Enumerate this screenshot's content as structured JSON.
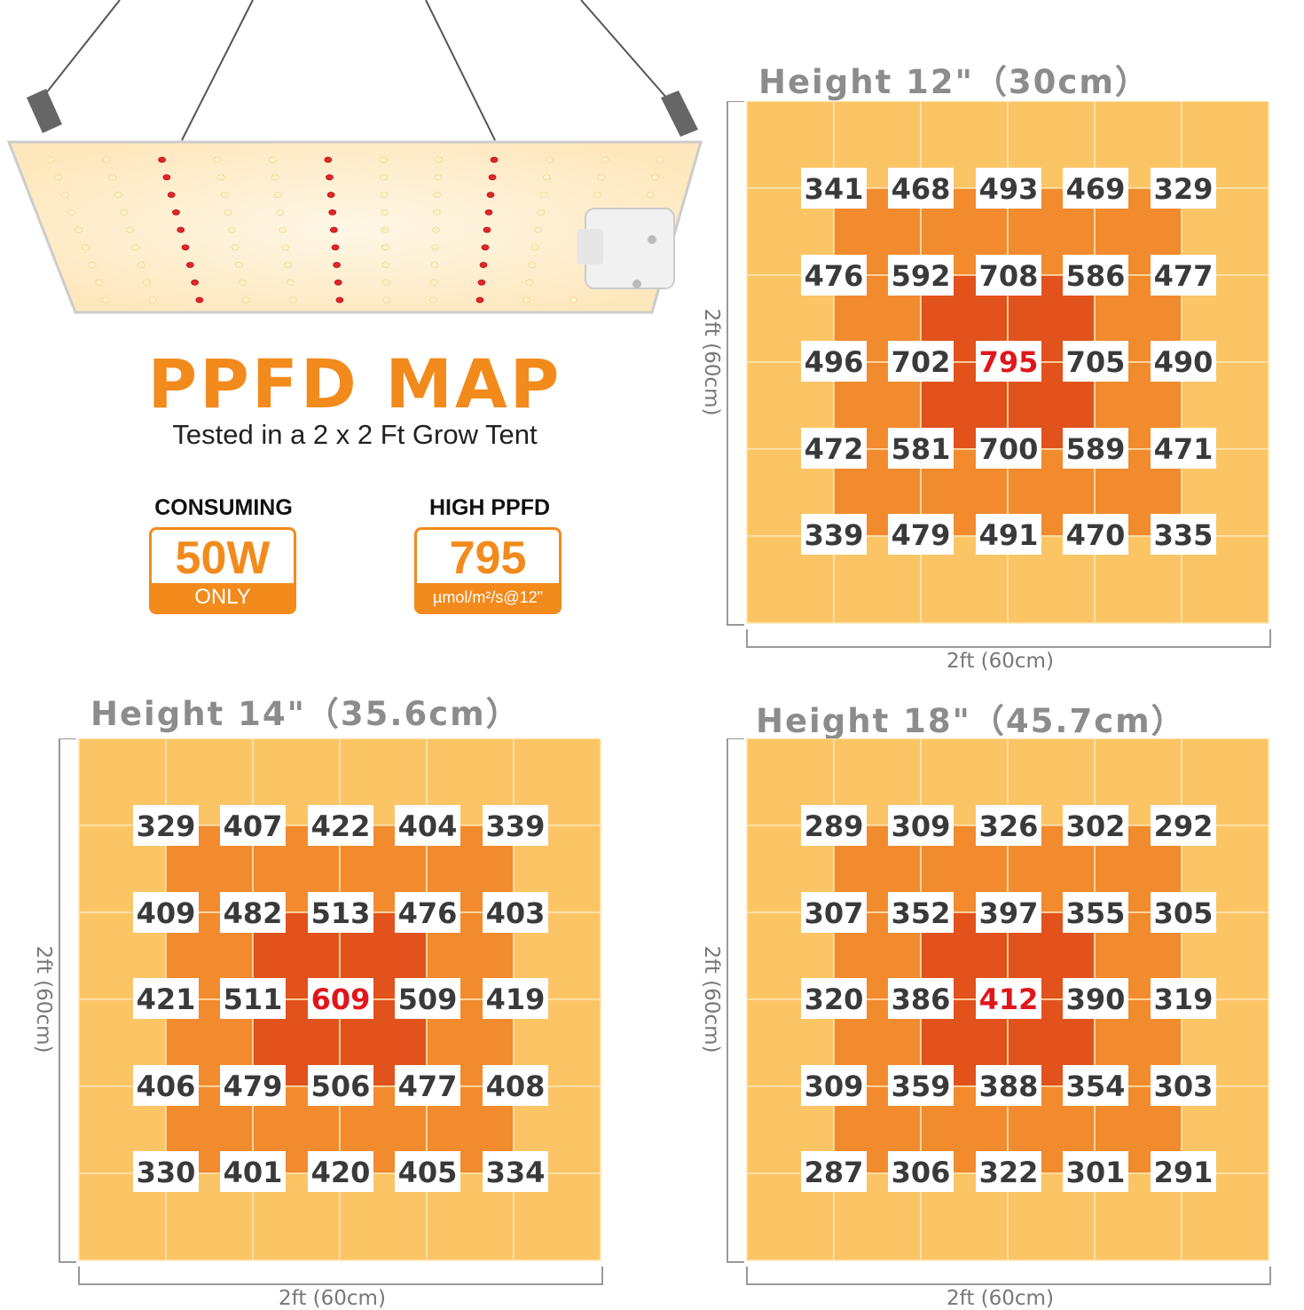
{
  "title": "PPFD MAP",
  "subtitle": "Tested in a 2 x 2 Ft Grow Tent",
  "consuming": {
    "label": "CONSUMING",
    "value": "50W",
    "note": "ONLY"
  },
  "high_ppfd": {
    "label": "HIGH PPFD",
    "value": "795",
    "unit": "µmol/m²/s@12\""
  },
  "colors": {
    "accent": "#f28a1c",
    "outer": "#fbc566",
    "middle": "#f28a2e",
    "inner": "#e1521c",
    "peak_text": "#e0161b"
  },
  "chart_data": [
    {
      "type": "heatmap",
      "title": "Height 12\"（30cm）",
      "xlabel": "2ft (60cm)",
      "ylabel": "2ft (60cm)",
      "peak": [
        2,
        2
      ],
      "values": [
        [
          341,
          468,
          493,
          469,
          329
        ],
        [
          476,
          592,
          708,
          586,
          477
        ],
        [
          496,
          702,
          795,
          705,
          490
        ],
        [
          472,
          581,
          700,
          589,
          471
        ],
        [
          339,
          479,
          491,
          470,
          335
        ]
      ]
    },
    {
      "type": "heatmap",
      "title": "Height 14\"（35.6cm）",
      "xlabel": "2ft (60cm)",
      "ylabel": "2ft (60cm)",
      "peak": [
        2,
        2
      ],
      "values": [
        [
          329,
          407,
          422,
          404,
          339
        ],
        [
          409,
          482,
          513,
          476,
          403
        ],
        [
          421,
          511,
          609,
          509,
          419
        ],
        [
          406,
          479,
          506,
          477,
          408
        ],
        [
          330,
          401,
          420,
          405,
          334
        ]
      ]
    },
    {
      "type": "heatmap",
      "title": "Height 18\"（45.7cm）",
      "xlabel": "2ft (60cm)",
      "ylabel": "2ft (60cm)",
      "peak": [
        2,
        2
      ],
      "values": [
        [
          289,
          309,
          326,
          302,
          292
        ],
        [
          307,
          352,
          397,
          355,
          305
        ],
        [
          320,
          386,
          412,
          390,
          319
        ],
        [
          309,
          359,
          388,
          354,
          303
        ],
        [
          287,
          306,
          322,
          301,
          291
        ]
      ]
    }
  ]
}
